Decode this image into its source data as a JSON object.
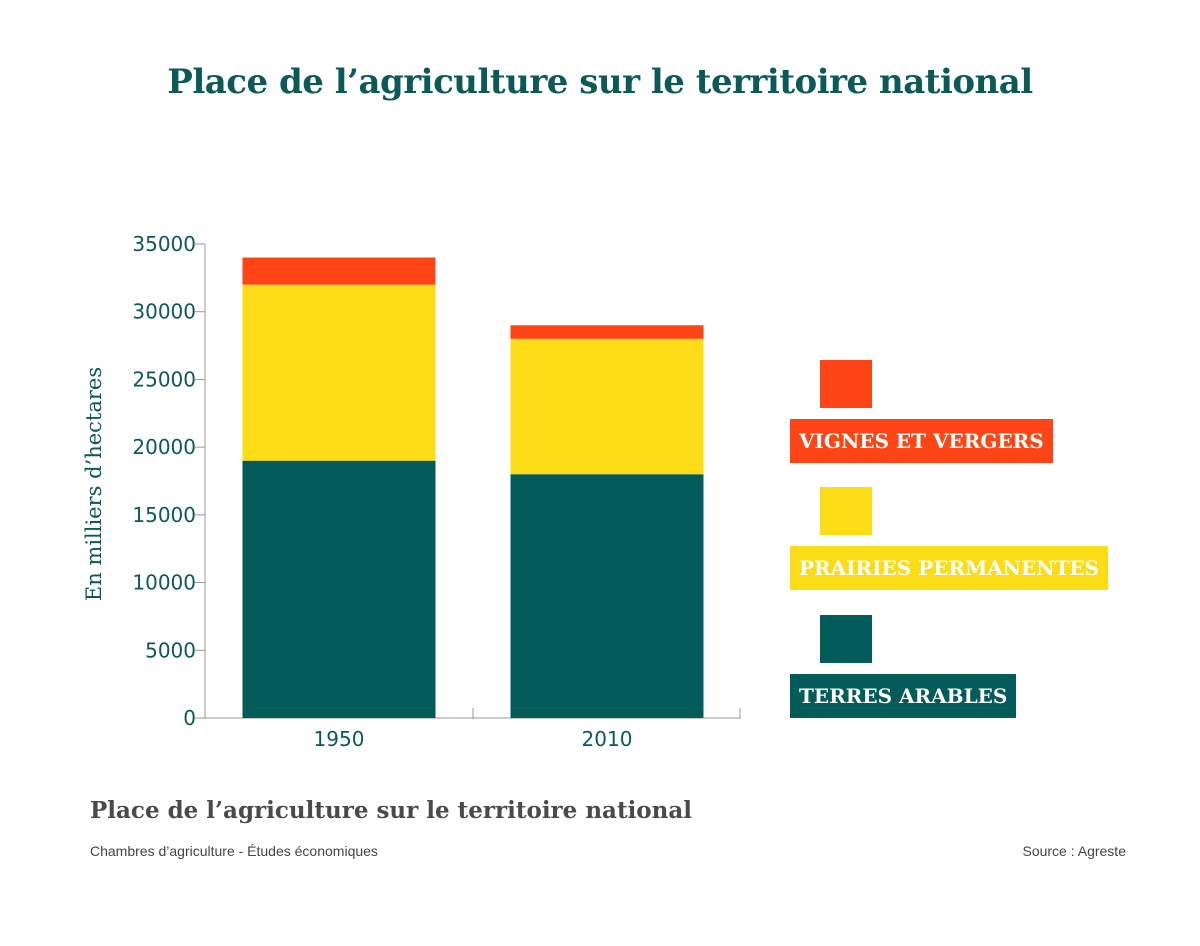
{
  "chart_data": {
    "type": "bar",
    "stacked": true,
    "title": "Place de l’agriculture sur le territoire national",
    "ylabel": "En milliers d’hectares",
    "xlabel": "",
    "ylim": [
      0,
      35000
    ],
    "yticks": [
      0,
      5000,
      10000,
      15000,
      20000,
      25000,
      30000,
      35000
    ],
    "categories": [
      "1950",
      "2010"
    ],
    "series": [
      {
        "name": "TERRES ARABLES",
        "values": [
          19000,
          18000
        ],
        "color": "#035b5a"
      },
      {
        "name": "PRAIRIES PERMANENTES",
        "values": [
          13000,
          10000
        ],
        "color": "#fcdb17"
      },
      {
        "name": "VIGNES ET VERGERS",
        "values": [
          2000,
          1000
        ],
        "color": "#ff4416"
      }
    ],
    "legend_position": "right",
    "grid": false
  },
  "caption": "Place de l’agriculture sur le territoire national",
  "credit": "Chambres d’agriculture - Études économiques",
  "source": "Source : Agreste",
  "colors": {
    "title": "#0b5a57",
    "axis_text": "#0b5a57",
    "caption": "#4a4a4a"
  }
}
